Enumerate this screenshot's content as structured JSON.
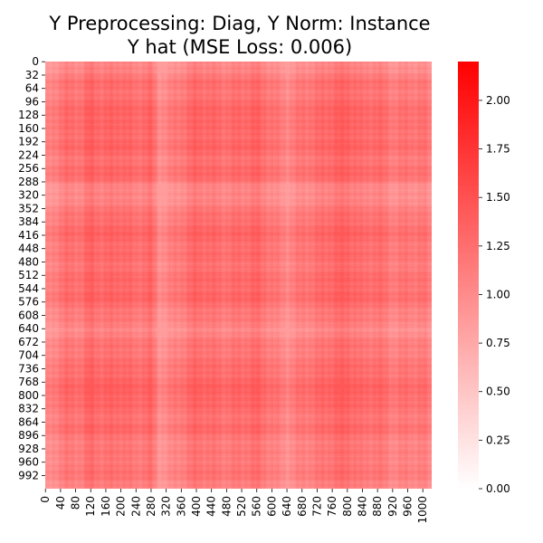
{
  "chart_data": {
    "type": "heatmap",
    "title_line1": "Y Preprocessing: Diag, Y Norm: Instance",
    "title_line2": "Y hat (MSE Loss: 0.006)",
    "xlabel": "",
    "ylabel": "",
    "matrix_size": 1024,
    "x_tick_labels": [
      "0",
      "40",
      "80",
      "120",
      "160",
      "200",
      "240",
      "280",
      "320",
      "360",
      "400",
      "440",
      "480",
      "520",
      "560",
      "600",
      "640",
      "680",
      "720",
      "760",
      "800",
      "840",
      "880",
      "920",
      "960",
      "1000"
    ],
    "y_tick_labels": [
      "0",
      "32",
      "64",
      "96",
      "128",
      "160",
      "192",
      "224",
      "256",
      "288",
      "320",
      "352",
      "384",
      "416",
      "448",
      "480",
      "512",
      "544",
      "576",
      "608",
      "640",
      "672",
      "704",
      "736",
      "768",
      "800",
      "832",
      "864",
      "896",
      "928",
      "960",
      "992"
    ],
    "colorbar": {
      "min": 0.0,
      "max": 2.2,
      "tick_values": [
        0.0,
        0.25,
        0.5,
        0.75,
        1.0,
        1.25,
        1.5,
        1.75,
        2.0
      ],
      "tick_labels": [
        "0.00",
        "0.25",
        "0.50",
        "0.75",
        "1.00",
        "1.25",
        "1.50",
        "1.75",
        "2.00"
      ],
      "colors": [
        "#ffffff",
        "#ff0000"
      ]
    },
    "value_range_observed": [
      0.85,
      1.45
    ],
    "base_value": 1.1,
    "profile_positions": [
      0,
      48,
      96,
      120,
      150,
      200,
      240,
      280,
      300,
      320,
      360,
      400,
      440,
      480,
      520,
      560,
      600,
      640,
      680,
      720,
      760,
      800,
      840,
      880,
      920,
      960,
      1000,
      1023
    ],
    "profile_values": [
      0.9,
      1.15,
      1.15,
      1.3,
      1.2,
      1.25,
      1.15,
      1.25,
      0.9,
      0.95,
      1.1,
      1.25,
      1.2,
      1.15,
      1.2,
      1.25,
      1.1,
      0.95,
      1.1,
      1.15,
      1.25,
      1.3,
      1.15,
      1.2,
      1.05,
      1.1,
      1.1,
      1.0
    ]
  }
}
